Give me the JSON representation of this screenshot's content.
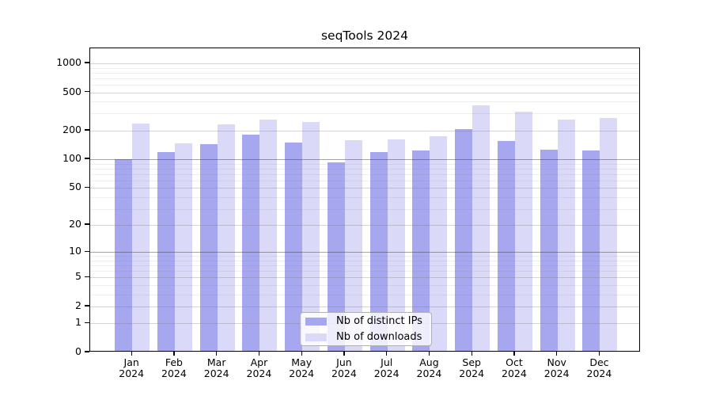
{
  "chart_data": {
    "type": "bar",
    "title": "seqTools 2024",
    "months": [
      "Jan",
      "Feb",
      "Mar",
      "Apr",
      "May",
      "Jun",
      "Jul",
      "Aug",
      "Sep",
      "Oct",
      "Nov",
      "Dec"
    ],
    "year": "2024",
    "categories": [
      "Jan 2024",
      "Feb 2024",
      "Mar 2024",
      "Apr 2024",
      "May 2024",
      "Jun 2024",
      "Jul 2024",
      "Aug 2024",
      "Sep 2024",
      "Oct 2024",
      "Nov 2024",
      "Dec 2024"
    ],
    "series": [
      {
        "name": "Nb of distinct IPs",
        "color": "#a7a7f0",
        "values": [
          97,
          114,
          139,
          174,
          145,
          90,
          115,
          120,
          201,
          149,
          121,
          120
        ]
      },
      {
        "name": "Nb of downloads",
        "color": "#dadaf8",
        "values": [
          226,
          142,
          222,
          252,
          236,
          153,
          155,
          167,
          353,
          302,
          251,
          259
        ]
      }
    ],
    "y_axis": {
      "scale": "log1p",
      "tick_labels": [
        "0",
        "1",
        "2",
        "5",
        "10",
        "20",
        "50",
        "100",
        "200",
        "500",
        "1000"
      ],
      "ylim": [
        0,
        1200
      ]
    },
    "legend": {
      "position": "inside-bottom-center",
      "entries": [
        "Nb of distinct IPs",
        "Nb of downloads"
      ]
    },
    "grid": "horizontal, log minor gridlines"
  }
}
